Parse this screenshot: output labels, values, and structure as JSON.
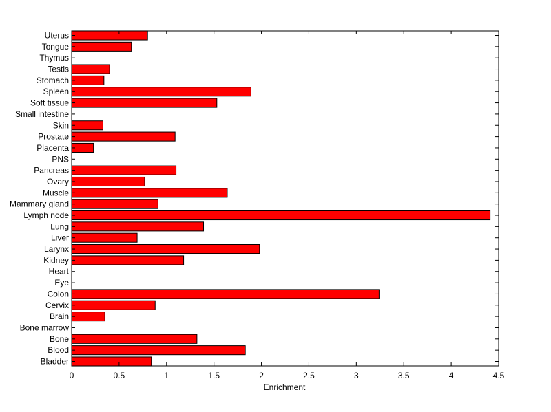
{
  "chart_data": {
    "type": "bar",
    "orientation": "horizontal",
    "title": "",
    "xlabel": "Enrichment",
    "ylabel": "",
    "xlim": [
      0,
      4.5
    ],
    "xticks": [
      "0",
      "0.5",
      "1",
      "1.5",
      "2",
      "2.5",
      "3",
      "3.5",
      "4",
      "4.5"
    ],
    "grid": false,
    "bar_color": "#ff0000",
    "categories": [
      "Bladder",
      "Blood",
      "Bone",
      "Bone marrow",
      "Brain",
      "Cervix",
      "Colon",
      "Eye",
      "Heart",
      "Kidney",
      "Larynx",
      "Liver",
      "Lung",
      "Lymph node",
      "Mammary gland",
      "Muscle",
      "Ovary",
      "Pancreas",
      "PNS",
      "Placenta",
      "Prostate",
      "Skin",
      "Small intestine",
      "Soft tissue",
      "Spleen",
      "Stomach",
      "Testis",
      "Thymus",
      "Tongue",
      "Uterus"
    ],
    "values": [
      0.84,
      1.83,
      1.32,
      0,
      0.35,
      0.88,
      3.24,
      0,
      0,
      1.18,
      1.98,
      0.69,
      1.39,
      4.41,
      0.91,
      1.64,
      0.77,
      1.1,
      0,
      0.23,
      1.09,
      0.33,
      0,
      1.53,
      1.89,
      0.34,
      0.4,
      0,
      0.63,
      0.8
    ]
  }
}
